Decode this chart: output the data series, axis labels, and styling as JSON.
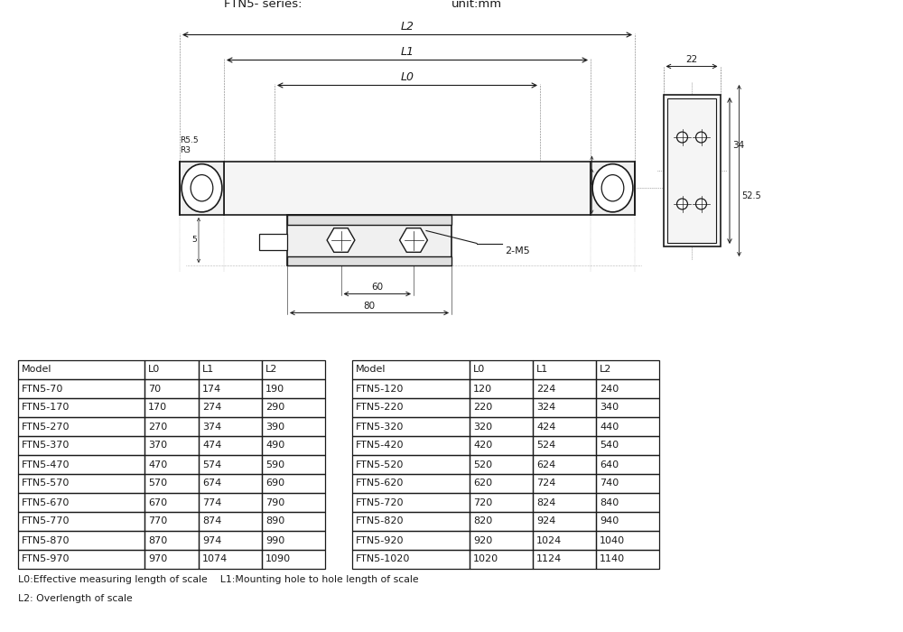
{
  "title_left": "FTN5- series:",
  "title_right": "unit:mm",
  "table_headers": [
    "Model",
    "L0",
    "L1",
    "L2"
  ],
  "table_data_left": [
    [
      "FTN5-70",
      "70",
      "174",
      "190"
    ],
    [
      "FTN5-170",
      "170",
      "274",
      "290"
    ],
    [
      "FTN5-270",
      "270",
      "374",
      "390"
    ],
    [
      "FTN5-370",
      "370",
      "474",
      "490"
    ],
    [
      "FTN5-470",
      "470",
      "574",
      "590"
    ],
    [
      "FTN5-570",
      "570",
      "674",
      "690"
    ],
    [
      "FTN5-670",
      "670",
      "774",
      "790"
    ],
    [
      "FTN5-770",
      "770",
      "874",
      "890"
    ],
    [
      "FTN5-870",
      "870",
      "974",
      "990"
    ],
    [
      "FTN5-970",
      "970",
      "1074",
      "1090"
    ]
  ],
  "table_data_right": [
    [
      "FTN5-120",
      "120",
      "224",
      "240"
    ],
    [
      "FTN5-220",
      "220",
      "324",
      "340"
    ],
    [
      "FTN5-320",
      "320",
      "424",
      "440"
    ],
    [
      "FTN5-420",
      "420",
      "524",
      "540"
    ],
    [
      "FTN5-520",
      "520",
      "624",
      "640"
    ],
    [
      "FTN5-620",
      "620",
      "724",
      "740"
    ],
    [
      "FTN5-720",
      "720",
      "824",
      "840"
    ],
    [
      "FTN5-820",
      "820",
      "924",
      "940"
    ],
    [
      "FTN5-920",
      "920",
      "1024",
      "1040"
    ],
    [
      "FTN5-1020",
      "1020",
      "1124",
      "1140"
    ]
  ],
  "footnote1": "L0:Effective measuring length of scale    L1:Mounting hole to hole length of scale",
  "footnote2": "L2: Overlength of scale",
  "bg_color": "#ffffff",
  "line_color": "#1a1a1a",
  "text_color": "#1a1a1a"
}
